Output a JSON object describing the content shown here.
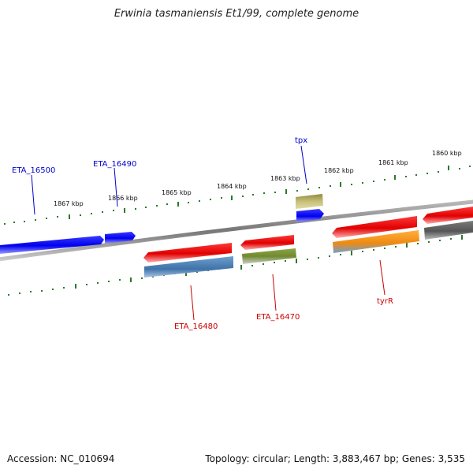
{
  "title": "Erwinia tasmaniensis Et1/99, complete genome",
  "footer": {
    "accession": "Accession: NC_010694",
    "topology": "Topology: circular; Length: 3,883,467 bp; Genes: 3,535"
  },
  "colors": {
    "forward_label": "#0000cc",
    "reverse_label": "#cc0000",
    "tick": "#2a7a2a",
    "backbone": "#808080"
  },
  "ticks": [
    "1867 kbp",
    "1866 kbp",
    "1865 kbp",
    "1864 kbp",
    "1863 kbp",
    "1862 kbp",
    "1861 kbp",
    "1860 kbp"
  ],
  "gene_labels": {
    "eta16500": "ETA_16500",
    "eta16490": "ETA_16490",
    "tpx": "tpx",
    "eta16480": "ETA_16480",
    "eta16470": "ETA_16470",
    "tyrR": "tyrR"
  }
}
